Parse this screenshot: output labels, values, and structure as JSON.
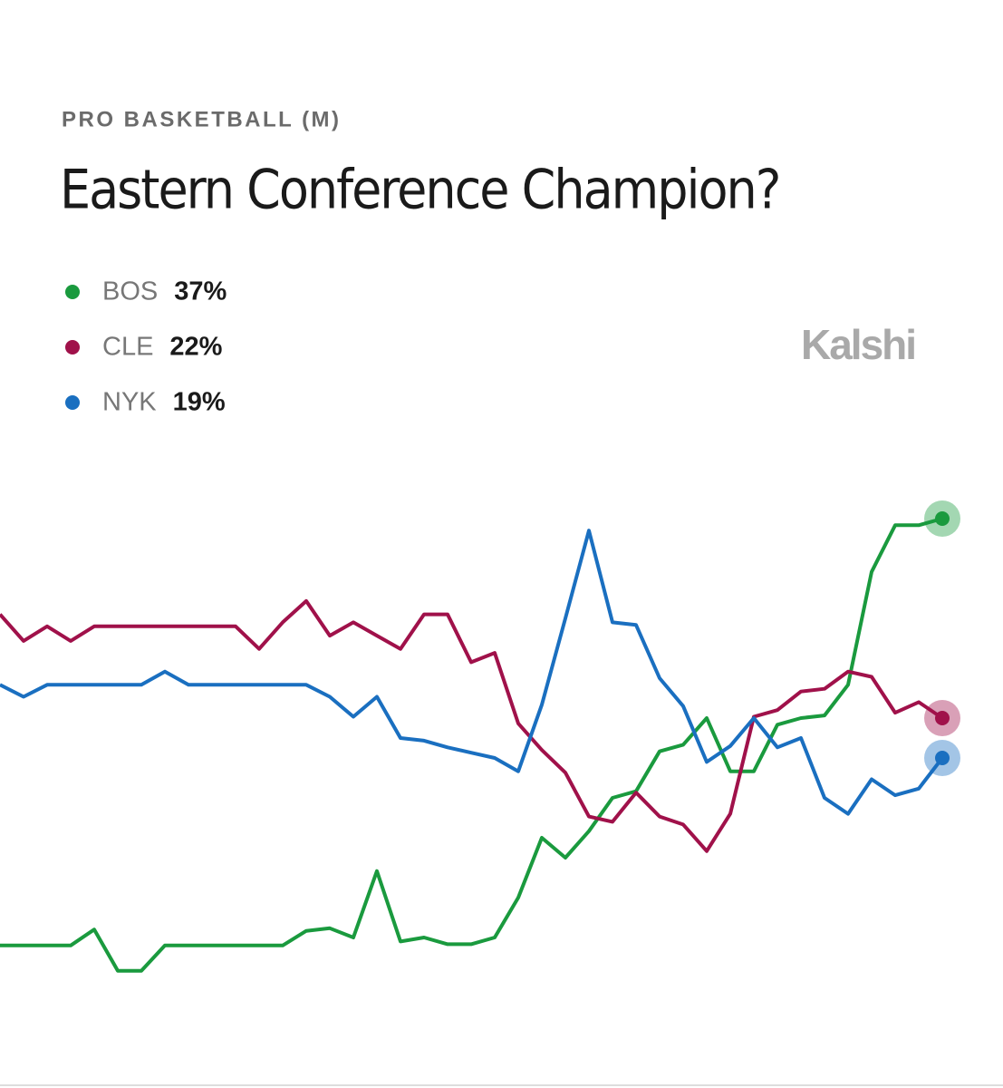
{
  "chart_data": {
    "type": "line",
    "subtitle": "PRO BASKETBALL (M)",
    "title": "Eastern Conference Champion?",
    "brand": "Kalshi",
    "ylim": [
      0,
      40
    ],
    "series": [
      {
        "name": "BOS",
        "color": "#1a9a3e",
        "current": {
          "value": 37,
          "label": "37%"
        },
        "values": [
          4.9,
          4.9,
          4.9,
          4.9,
          6.1,
          3.0,
          3.0,
          4.9,
          4.9,
          4.9,
          4.9,
          4.9,
          4.9,
          6.0,
          6.2,
          5.5,
          10.5,
          5.2,
          5.5,
          5.0,
          5.0,
          5.5,
          8.5,
          13.0,
          11.5,
          13.5,
          16.0,
          16.5,
          19.5,
          20.0,
          22.0,
          18.0,
          18.0,
          21.5,
          22.0,
          22.2,
          24.5,
          33.0,
          36.5,
          36.5,
          37
        ]
      },
      {
        "name": "CLE",
        "color": "#a0114a",
        "current": {
          "value": 22,
          "label": "22%"
        },
        "values": [
          29.8,
          27.8,
          28.9,
          27.8,
          28.9,
          28.9,
          28.9,
          28.9,
          28.9,
          28.9,
          28.9,
          27.2,
          29.2,
          30.8,
          28.2,
          29.2,
          28.2,
          27.2,
          29.8,
          29.8,
          26.2,
          26.9,
          21.6,
          19.6,
          17.9,
          14.6,
          14.2,
          16.4,
          14.6,
          14.0,
          12.0,
          14.8,
          22.1,
          22.6,
          24.0,
          24.2,
          25.5,
          25.1,
          22.4,
          23.2,
          22
        ]
      },
      {
        "name": "NYK",
        "color": "#1a6fc0",
        "current": {
          "value": 19,
          "label": "19%"
        },
        "values": [
          24.5,
          23.6,
          24.5,
          24.5,
          24.5,
          24.5,
          24.5,
          25.5,
          24.5,
          24.5,
          24.5,
          24.5,
          24.5,
          24.5,
          23.6,
          22.1,
          23.6,
          20.5,
          20.3,
          19.8,
          19.4,
          19.0,
          18.0,
          23.0,
          29.5,
          36.1,
          29.2,
          29.0,
          25.0,
          22.9,
          18.7,
          19.9,
          22.0,
          19.8,
          20.5,
          16.0,
          14.8,
          17.4,
          16.2,
          16.7,
          19
        ]
      }
    ]
  }
}
